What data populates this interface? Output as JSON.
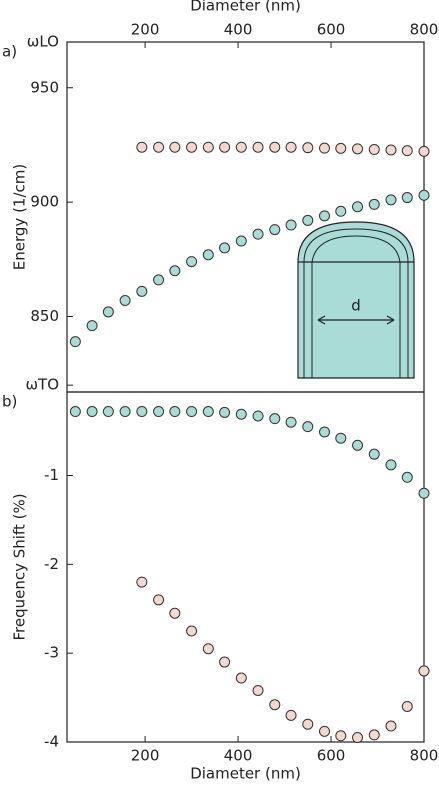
{
  "chart_data": [
    {
      "type": "scatter",
      "panel_label": "a)",
      "xlabel": "Diameter (nm)",
      "ylabel": "Energy (1/cm)",
      "x_axis": "top",
      "annotation": "d",
      "x": [
        50,
        86,
        121,
        157,
        193,
        229,
        264,
        300,
        336,
        371,
        407,
        443,
        479,
        514,
        550,
        586,
        621,
        657,
        693,
        729,
        764,
        800
      ],
      "xlim": [
        32,
        800
      ],
      "xticks": [
        200,
        400,
        600,
        800
      ],
      "ylim": [
        817,
        970
      ],
      "yticks": [
        {
          "value": 820,
          "label": "ωTO"
        },
        850,
        900,
        950,
        {
          "value": 970,
          "label": "ωLO"
        }
      ],
      "series": [
        {
          "color": "#f4d8d0",
          "values": [
            null,
            null,
            null,
            null,
            924,
            924,
            924,
            924,
            924,
            924,
            924,
            924,
            924,
            924,
            923.8,
            923.6,
            923.5,
            923.3,
            923,
            922.8,
            922.5,
            922.2
          ]
        },
        {
          "color": "#a9dbd7",
          "values": [
            839,
            846,
            852,
            857,
            861,
            866,
            870,
            874,
            877,
            880,
            883,
            886,
            888,
            890,
            892,
            894,
            896,
            898,
            899,
            901,
            902,
            903
          ]
        }
      ]
    },
    {
      "type": "scatter",
      "panel_label": "b)",
      "xlabel": "Diameter (nm)",
      "ylabel": "Frequency Shift (%)",
      "x_axis": "bottom",
      "x": [
        50,
        86,
        121,
        157,
        193,
        229,
        264,
        300,
        336,
        371,
        407,
        443,
        479,
        514,
        550,
        586,
        621,
        657,
        693,
        729,
        764,
        800
      ],
      "xlim": [
        32,
        800
      ],
      "xticks": [
        200,
        400,
        600,
        800
      ],
      "ylim": [
        -4,
        -0.06
      ],
      "yticks": [
        -4,
        -3,
        -2,
        -1
      ],
      "series": [
        {
          "color": "#a9dbd7",
          "values": [
            -0.28,
            -0.28,
            -0.28,
            -0.28,
            -0.28,
            -0.28,
            -0.28,
            -0.28,
            -0.28,
            -0.29,
            -0.31,
            -0.33,
            -0.36,
            -0.4,
            -0.45,
            -0.51,
            -0.58,
            -0.66,
            -0.76,
            -0.88,
            -1.02,
            -1.2
          ]
        },
        {
          "color": "#f4d8d0",
          "values": [
            null,
            null,
            null,
            null,
            -2.2,
            -2.4,
            -2.55,
            -2.75,
            -2.95,
            -3.1,
            -3.28,
            -3.42,
            -3.58,
            -3.7,
            -3.8,
            -3.88,
            -3.93,
            -3.95,
            -3.92,
            -3.82,
            -3.6,
            -3.2
          ]
        }
      ]
    }
  ]
}
